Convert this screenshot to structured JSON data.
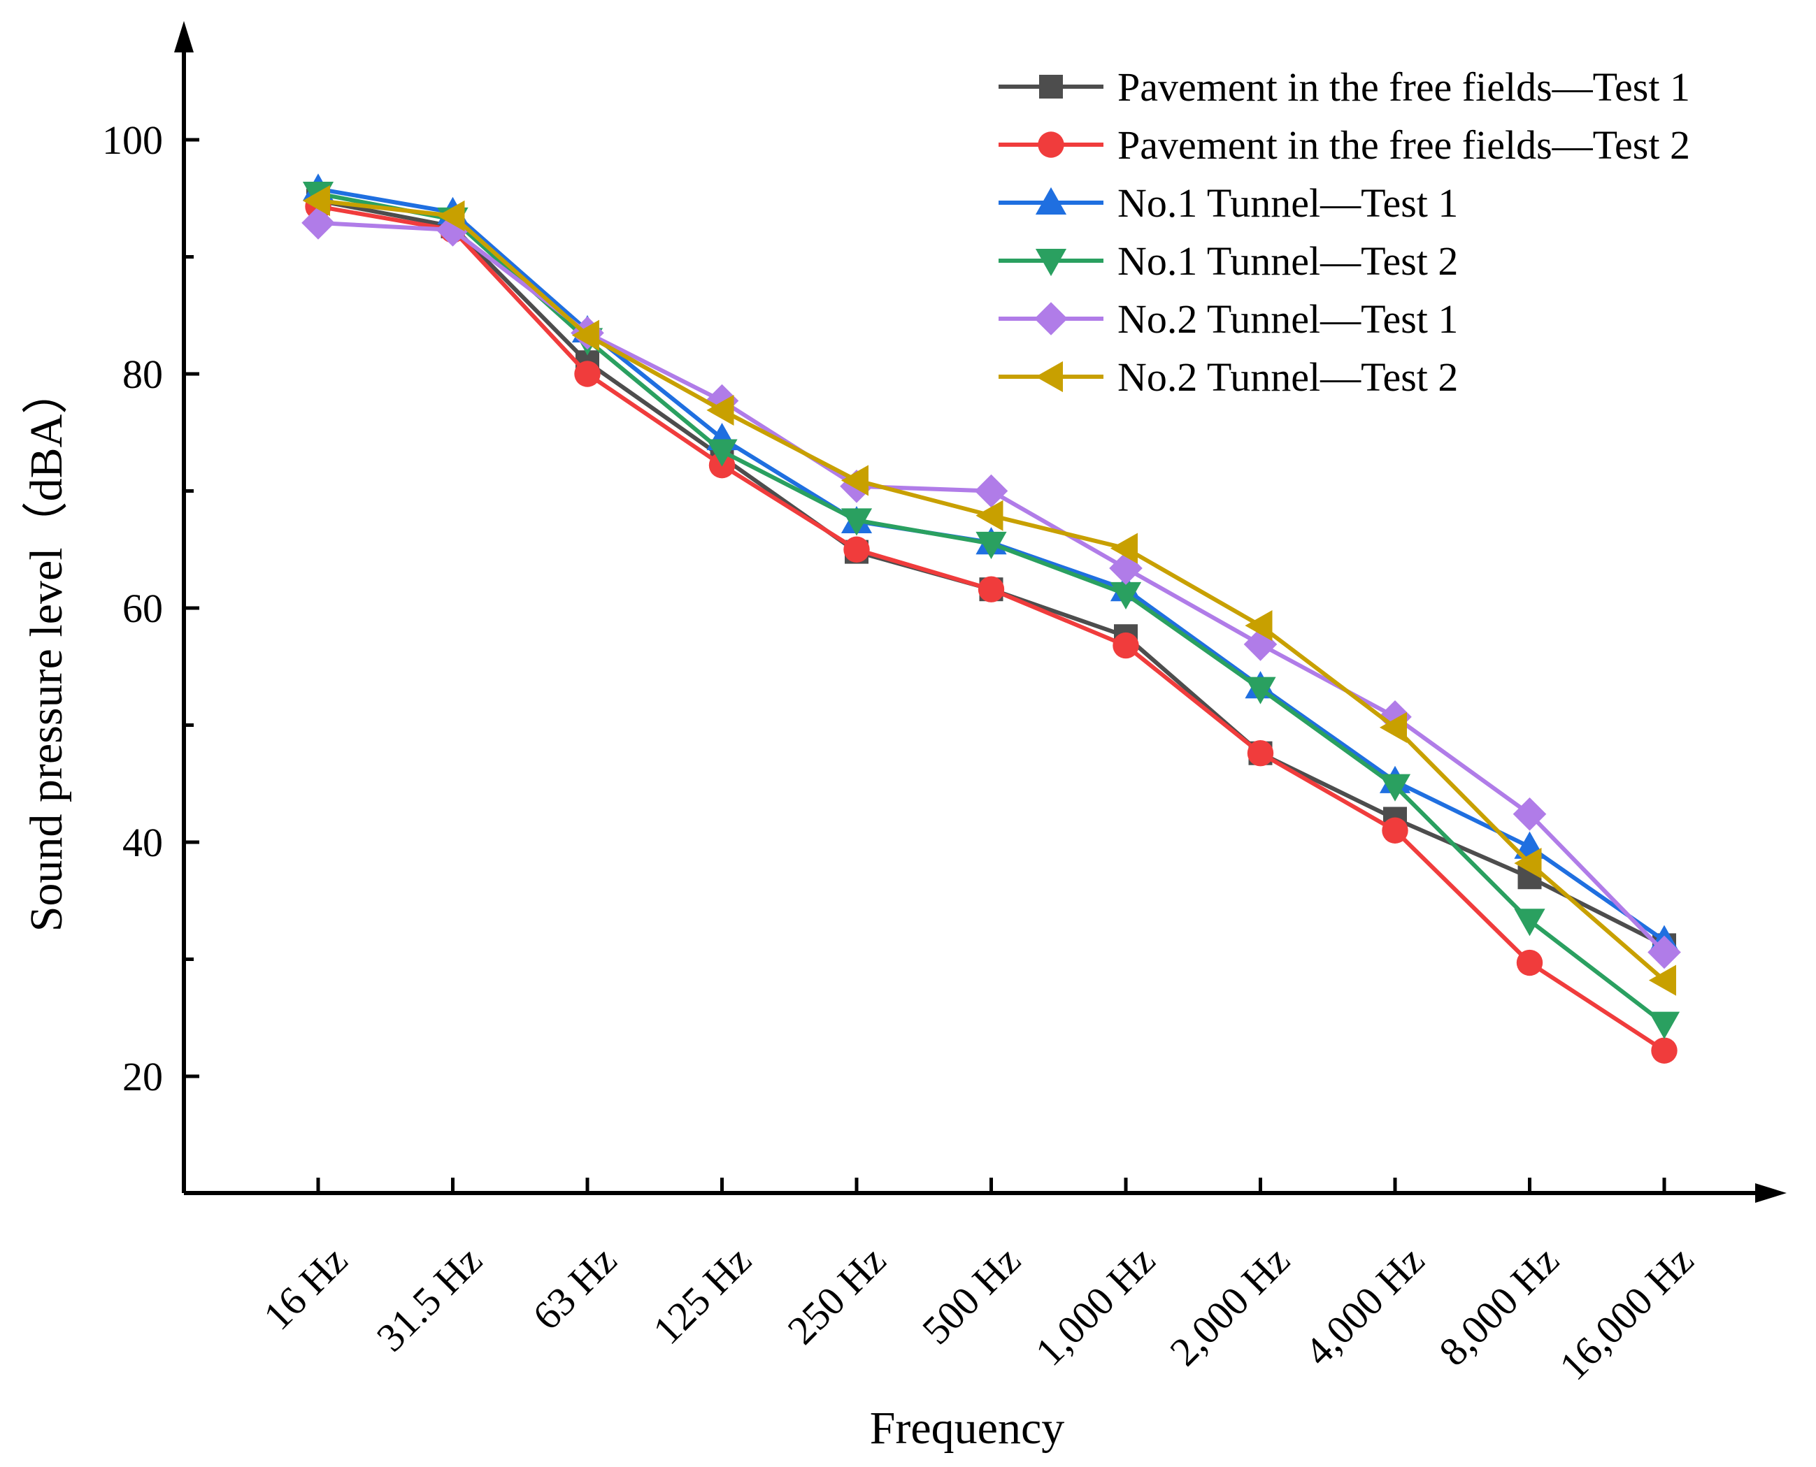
{
  "chart_data": {
    "type": "line",
    "title": "",
    "xlabel": "Frequency",
    "ylabel": "Sound pressure level（dBA）",
    "categories": [
      "16 Hz",
      "31.5 Hz",
      "63 Hz",
      "125 Hz",
      "250 Hz",
      "500 Hz",
      "1,000 Hz",
      "2,000 Hz",
      "4,000 Hz",
      "8,000 Hz",
      "16,000 Hz"
    ],
    "ylim": [
      10,
      110
    ],
    "yticks": [
      20,
      40,
      60,
      80,
      100
    ],
    "grid": false,
    "legend_position": "top-right",
    "series": [
      {
        "name": "Pavement in the free fields—Test 1",
        "color": "#4d4d4d",
        "marker": "square",
        "values": [
          94.8,
          92.6,
          81.0,
          72.9,
          64.8,
          61.6,
          57.6,
          47.6,
          42.0,
          37.0,
          31.2
        ]
      },
      {
        "name": "Pavement in the free fields—Test 2",
        "color": "#f03c3c",
        "marker": "circle",
        "values": [
          94.3,
          92.3,
          80.0,
          72.2,
          65.0,
          61.6,
          56.8,
          47.6,
          41.0,
          29.7,
          22.2
        ]
      },
      {
        "name": "No.1 Tunnel—Test 1",
        "color": "#1f6fe0",
        "marker": "triangle-up",
        "values": [
          95.8,
          93.8,
          83.7,
          74.5,
          67.4,
          65.6,
          61.6,
          53.3,
          45.2,
          39.6,
          31.6
        ]
      },
      {
        "name": "No.1 Tunnel—Test 2",
        "color": "#2aa060",
        "marker": "triangle-down",
        "values": [
          95.4,
          93.2,
          82.9,
          73.4,
          67.5,
          65.5,
          61.2,
          53.1,
          44.8,
          33.3,
          24.5
        ]
      },
      {
        "name": "No.2 Tunnel—Test 1",
        "color": "#b07ce8",
        "marker": "diamond",
        "values": [
          92.9,
          92.3,
          83.5,
          77.7,
          70.4,
          70.0,
          63.4,
          56.9,
          50.7,
          42.4,
          30.6
        ]
      },
      {
        "name": "No.2 Tunnel—Test 2",
        "color": "#c8a000",
        "marker": "triangle-left",
        "values": [
          94.8,
          93.5,
          83.3,
          76.9,
          70.9,
          67.9,
          65.1,
          58.5,
          49.8,
          38.2,
          28.2
        ]
      }
    ]
  }
}
